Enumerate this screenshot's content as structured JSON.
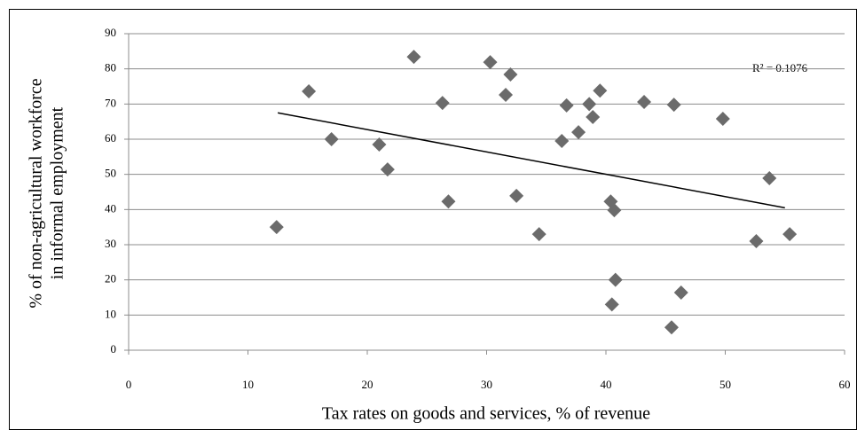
{
  "chart_data": {
    "type": "scatter",
    "x_label": "Tax rates on goods and services, % of revenue",
    "y_label": [
      "% of non-agricultural workforce",
      "in informal employment"
    ],
    "annotation": "R² = 0.1076",
    "series": [
      {
        "color": "#6b6b6b",
        "x": [
          12.4,
          15.1,
          17.0,
          21.0,
          21.7,
          23.9,
          26.3,
          26.8,
          30.3,
          31.6,
          32.0,
          32.5,
          34.4,
          36.3,
          36.7,
          37.7,
          38.6,
          38.9,
          39.5,
          40.4,
          40.7,
          40.8,
          40.5,
          43.2,
          45.7,
          45.5,
          46.3,
          49.8,
          52.6,
          53.7,
          55.4
        ],
        "values": [
          35.0,
          73.6,
          60.0,
          58.5,
          51.4,
          83.4,
          70.3,
          42.3,
          81.9,
          72.6,
          78.4,
          43.9,
          33.0,
          59.5,
          69.6,
          62.0,
          70.0,
          66.3,
          73.8,
          42.3,
          39.8,
          20.0,
          13.0,
          70.6,
          69.8,
          6.5,
          16.4,
          65.8,
          31.0,
          48.9,
          33.0
        ]
      }
    ],
    "trendline": {
      "color": "#000000",
      "x": [
        12.5,
        55
      ],
      "values": [
        67.5,
        40.5
      ]
    },
    "xlim": [
      0,
      60
    ],
    "xticks": [
      0,
      10,
      20,
      30,
      40,
      50,
      60
    ],
    "ylim": [
      0,
      90
    ],
    "yticks": [
      0,
      10,
      20,
      30,
      40,
      50,
      60,
      70,
      80,
      90
    ],
    "grid": true
  }
}
